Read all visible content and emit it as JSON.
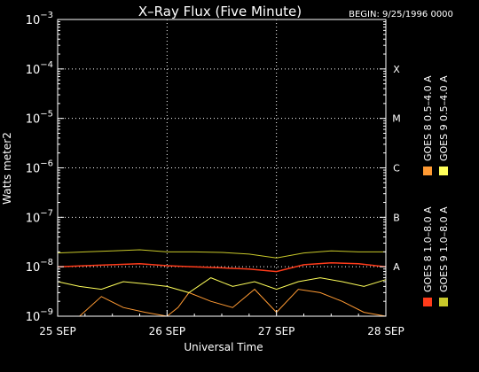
{
  "chart_data": {
    "type": "line",
    "title": "X–Ray Flux (Five Minute)",
    "begin_label": "BEGIN: 9/25/1996 0000",
    "xlabel": "Universal Time",
    "ylabel": "Watts meter2",
    "y_scale": "log",
    "ylim": [
      1e-09,
      0.001
    ],
    "xlim": [
      0,
      3
    ],
    "x_ticks": [
      {
        "x": 0,
        "label": "25 SEP"
      },
      {
        "x": 1,
        "label": "26 SEP"
      },
      {
        "x": 2,
        "label": "27 SEP"
      },
      {
        "x": 3,
        "label": "28 SEP"
      }
    ],
    "y_ticks": [
      {
        "value": 1e-09,
        "base": "10",
        "exp": "−9"
      },
      {
        "value": 1e-08,
        "base": "10",
        "exp": "−8"
      },
      {
        "value": 1e-07,
        "base": "10",
        "exp": "−7"
      },
      {
        "value": 1e-06,
        "base": "10",
        "exp": "−6"
      },
      {
        "value": 1e-05,
        "base": "10",
        "exp": "−5"
      },
      {
        "value": 0.0001,
        "base": "10",
        "exp": "−4"
      },
      {
        "value": 0.001,
        "base": "10",
        "exp": "−3"
      }
    ],
    "class_labels": [
      {
        "value": 1e-08,
        "label": "A"
      },
      {
        "value": 1e-07,
        "label": "B"
      },
      {
        "value": 1e-06,
        "label": "C"
      },
      {
        "value": 1e-05,
        "label": "M"
      },
      {
        "value": 0.0001,
        "label": "X"
      }
    ],
    "grid": true,
    "legend_position": "right",
    "series": [
      {
        "name": "GOES 8 1.0–8.0 A",
        "color": "#ff3b1a",
        "x": [
          0,
          0.25,
          0.5,
          0.75,
          1.0,
          1.25,
          1.5,
          1.75,
          2.0,
          2.25,
          2.5,
          2.75,
          3.0
        ],
        "y": [
          1e-08,
          1.05e-08,
          1.1e-08,
          1.15e-08,
          1.05e-08,
          1e-08,
          9.5e-09,
          9e-09,
          8e-09,
          1.1e-08,
          1.2e-08,
          1.15e-08,
          1e-08
        ]
      },
      {
        "name": "GOES 8 0.5–4.0 A",
        "color": "#ff9a33",
        "x": [
          0,
          0.2,
          0.4,
          0.6,
          0.8,
          1.0,
          1.1,
          1.2,
          1.4,
          1.6,
          1.8,
          2.0,
          2.2,
          2.4,
          2.6,
          2.8,
          3.0
        ],
        "y": [
          1e-09,
          1e-09,
          2.5e-09,
          1.5e-09,
          1.2e-09,
          1e-09,
          1.5e-09,
          3e-09,
          2e-09,
          1.5e-09,
          3.5e-09,
          1.2e-09,
          3.5e-09,
          3e-09,
          2e-09,
          1.2e-09,
          1e-09
        ]
      },
      {
        "name": "GOES 9 0.5–4.0 A",
        "color": "#ffff5a",
        "x": [
          0,
          0.2,
          0.4,
          0.6,
          0.8,
          1.0,
          1.2,
          1.4,
          1.6,
          1.8,
          2.0,
          2.2,
          2.4,
          2.6,
          2.8,
          3.0
        ],
        "y": [
          5e-09,
          4e-09,
          3.5e-09,
          5e-09,
          4.5e-09,
          4e-09,
          3e-09,
          6e-09,
          4e-09,
          5e-09,
          3.5e-09,
          5e-09,
          6e-09,
          5e-09,
          4e-09,
          5.5e-09
        ]
      },
      {
        "name": "GOES 9 1.0–8.0 A",
        "color": "#c8c82a",
        "x": [
          0,
          0.25,
          0.5,
          0.75,
          1.0,
          1.25,
          1.5,
          1.75,
          2.0,
          2.25,
          2.5,
          2.75,
          3.0
        ],
        "y": [
          1.9e-08,
          2e-08,
          2.1e-08,
          2.2e-08,
          2e-08,
          2e-08,
          1.95e-08,
          1.8e-08,
          1.5e-08,
          1.9e-08,
          2.1e-08,
          2e-08,
          2e-08
        ]
      }
    ]
  }
}
